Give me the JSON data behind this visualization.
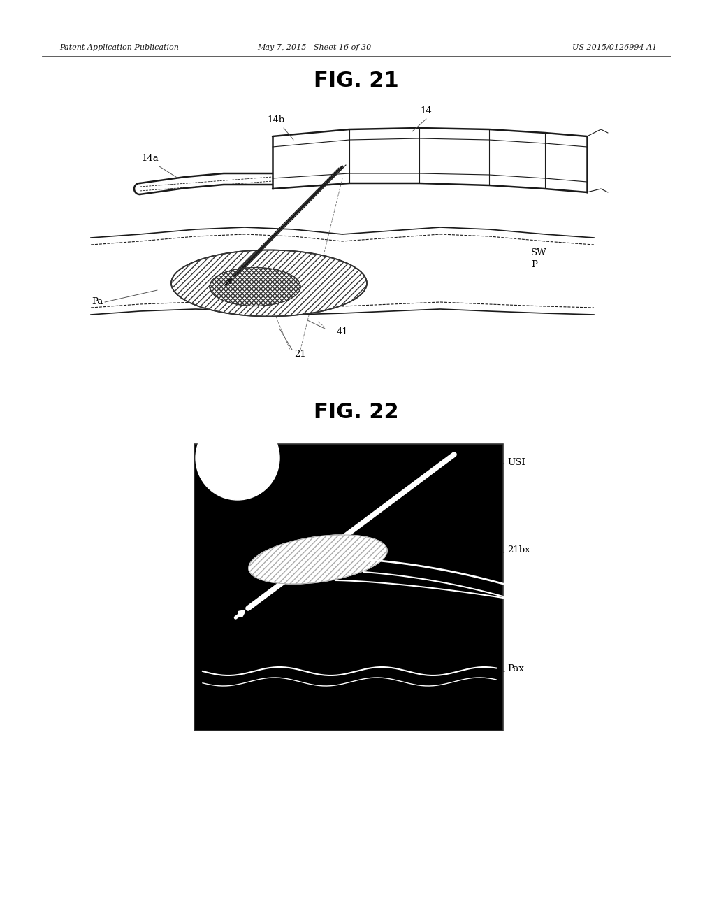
{
  "header_left": "Patent Application Publication",
  "header_mid": "May 7, 2015   Sheet 16 of 30",
  "header_right": "US 2015/0126994 A1",
  "fig21_title": "FIG. 21",
  "fig22_title": "FIG. 22",
  "bg_color": "#ffffff",
  "line_color": "#1a1a1a"
}
